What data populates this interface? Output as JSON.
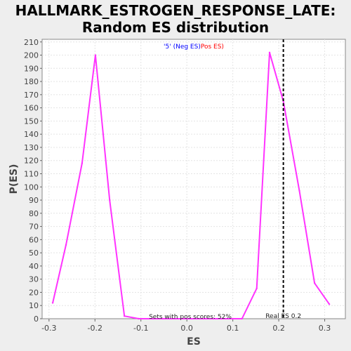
{
  "chart_data": {
    "type": "line",
    "title_line1": "HALLMARK_ESTROGEN_RESPONSE_LATE:",
    "title_line2": "Random ES distribution",
    "xlabel": "ES",
    "ylabel": "P(ES)",
    "xlim": [
      -0.315,
      0.345
    ],
    "ylim": [
      0,
      212
    ],
    "x_ticks": [
      -0.3,
      -0.2,
      -0.1,
      0.0,
      0.1,
      0.2,
      0.3
    ],
    "x_tick_labels": [
      "-0.3",
      "-0.2",
      "-0.1",
      "0.0",
      "0.1",
      "0.2",
      "0.3"
    ],
    "y_ticks": [
      0,
      10,
      20,
      30,
      40,
      50,
      60,
      70,
      80,
      90,
      100,
      110,
      120,
      130,
      140,
      150,
      160,
      170,
      180,
      190,
      200,
      210
    ],
    "grid": true,
    "legend_position": "top-center",
    "legend": {
      "part1": "'5' (Neg ES)",
      "part1_color": "#0000ff",
      "part2": "Pos ES)",
      "part2_color": "#ff0000"
    },
    "series": [
      {
        "color": "#ff33ff",
        "x": [
          -0.292,
          -0.263,
          -0.228,
          -0.199,
          -0.168,
          -0.136,
          -0.105,
          0.12,
          0.152,
          0.18,
          0.21,
          0.245,
          0.278,
          0.31
        ],
        "y": [
          12,
          56,
          118,
          200,
          90,
          2,
          0,
          0,
          23,
          202,
          165,
          97,
          27,
          11
        ]
      }
    ],
    "real_es": {
      "value": 0.21,
      "label": "Real ES 0.2",
      "color": "#000000"
    },
    "annotation": "Sets with pos scores: 52%"
  }
}
